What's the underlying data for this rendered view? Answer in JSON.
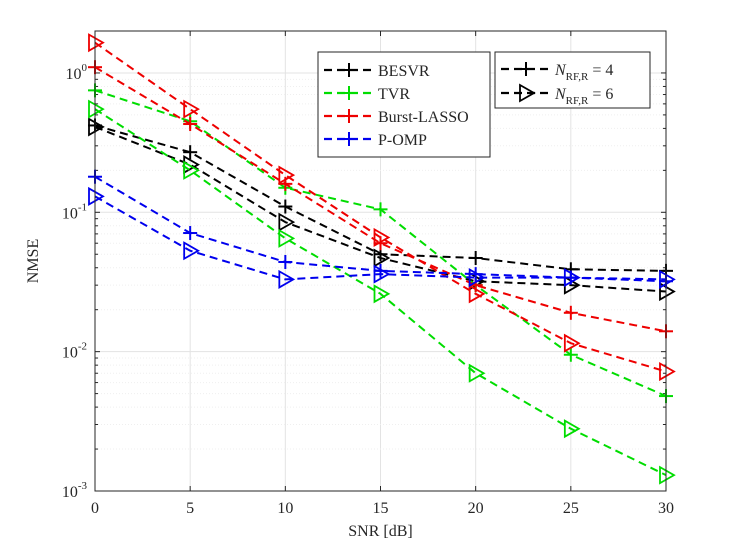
{
  "chart_data": {
    "type": "line",
    "title": "",
    "xlabel": "SNR [dB]",
    "ylabel": "NMSE",
    "yscale": "log",
    "xlim": [
      0,
      30
    ],
    "ylim": [
      0.001,
      2
    ],
    "grid": true,
    "x": [
      0,
      5,
      10,
      15,
      20,
      25,
      30
    ],
    "x_ticks": [
      {
        "value": 0,
        "label": "0"
      },
      {
        "value": 5,
        "label": "5"
      },
      {
        "value": 10,
        "label": "10"
      },
      {
        "value": 15,
        "label": "15"
      },
      {
        "value": 20,
        "label": "20"
      },
      {
        "value": 25,
        "label": "25"
      },
      {
        "value": 30,
        "label": "30"
      }
    ],
    "y_ticks": [
      {
        "value": 0.001,
        "base": "10",
        "exp": "-3"
      },
      {
        "value": 0.01,
        "base": "10",
        "exp": "-2"
      },
      {
        "value": 0.1,
        "base": "10",
        "exp": "-1"
      },
      {
        "value": 1,
        "base": "10",
        "exp": "0"
      }
    ],
    "series": [
      {
        "name": "BESVR",
        "color": "#000000",
        "marker": "plus",
        "antennas": "4",
        "values": [
          0.42,
          0.27,
          0.11,
          0.05,
          0.047,
          0.039,
          0.038
        ]
      },
      {
        "name": "BESVR",
        "color": "#000000",
        "marker": "triangle-right",
        "antennas": "6",
        "values": [
          0.41,
          0.22,
          0.085,
          0.047,
          0.032,
          0.03,
          0.027
        ]
      },
      {
        "name": "TVR",
        "color": "#00dd00",
        "marker": "plus",
        "antennas": "4",
        "values": [
          0.75,
          0.45,
          0.15,
          0.105,
          0.03,
          0.0095,
          0.0048
        ]
      },
      {
        "name": "TVR",
        "color": "#00dd00",
        "marker": "triangle-right",
        "antennas": "6",
        "values": [
          0.55,
          0.2,
          0.065,
          0.026,
          0.007,
          0.0028,
          0.0013
        ]
      },
      {
        "name": "Burst-LASSO",
        "color": "#ee0000",
        "marker": "plus",
        "antennas": "4",
        "values": [
          1.1,
          0.43,
          0.16,
          0.06,
          0.03,
          0.019,
          0.014
        ]
      },
      {
        "name": "Burst-LASSO",
        "color": "#ee0000",
        "marker": "triangle-right",
        "antennas": "6",
        "values": [
          1.65,
          0.55,
          0.185,
          0.066,
          0.026,
          0.0115,
          0.0072
        ]
      },
      {
        "name": "P-OMP",
        "color": "#0000ee",
        "marker": "plus",
        "antennas": "4",
        "values": [
          0.18,
          0.071,
          0.044,
          0.038,
          0.036,
          0.034,
          0.032
        ]
      },
      {
        "name": "P-OMP",
        "color": "#0000ee",
        "marker": "triangle-right",
        "antennas": "6",
        "values": [
          0.13,
          0.053,
          0.033,
          0.036,
          0.034,
          0.034,
          0.033
        ]
      }
    ],
    "legend_algorithms": {
      "placement": "top-center",
      "entries": [
        {
          "label": "BESVR",
          "color": "#000000"
        },
        {
          "label": "TVR",
          "color": "#00dd00"
        },
        {
          "label": "Burst-LASSO",
          "color": "#ee0000"
        },
        {
          "label": "P-OMP",
          "color": "#0000ee"
        }
      ]
    },
    "legend_antennas": {
      "placement": "top-right",
      "symbol": "N",
      "subscript": "RF,R",
      "entries": [
        {
          "marker": "plus",
          "value": "4"
        },
        {
          "marker": "triangle-right",
          "value": "6"
        }
      ]
    }
  }
}
